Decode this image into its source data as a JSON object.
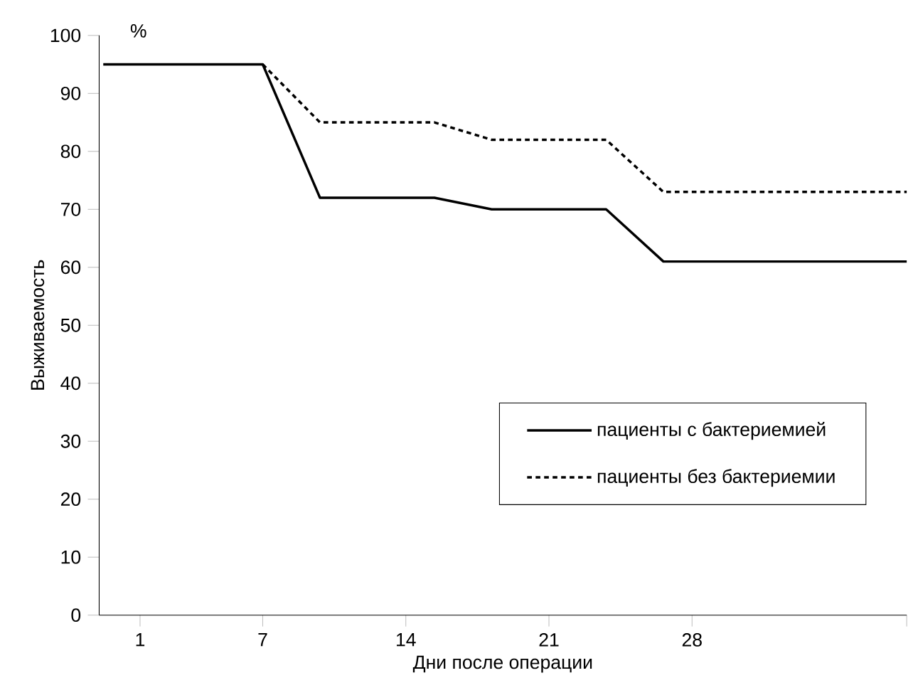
{
  "chart_data": {
    "type": "line",
    "xlabel": "Дни после операции",
    "ylabel": "Выживаемость",
    "annotations": [
      "%"
    ],
    "xlim": [
      -1,
      38.5
    ],
    "xticks": [
      1,
      7,
      14,
      21,
      28,
      {
        "value": 38.5,
        "label": null
      }
    ],
    "ylim": [
      0,
      100
    ],
    "yticks": [
      0,
      10,
      20,
      30,
      40,
      50,
      60,
      70,
      80,
      90,
      100
    ],
    "legend": "bottom right",
    "marker": "none",
    "series": [
      {
        "name": "пациенты с бактериемией",
        "color": "#000000",
        "line_style": "solid",
        "x": [
          -0.8,
          7,
          9.8,
          15.4,
          18.2,
          23.8,
          26.6,
          38.5
        ],
        "values": [
          95,
          95,
          72,
          72,
          70,
          70,
          61,
          61
        ]
      },
      {
        "name": "пациенты без бактериемии",
        "color": "#000000",
        "line_style": "dotted",
        "x": [
          7,
          9.8,
          15.4,
          18.2,
          23.8,
          26.6,
          38.5
        ],
        "values": [
          95,
          85,
          85,
          82,
          82,
          73,
          73
        ]
      }
    ]
  }
}
